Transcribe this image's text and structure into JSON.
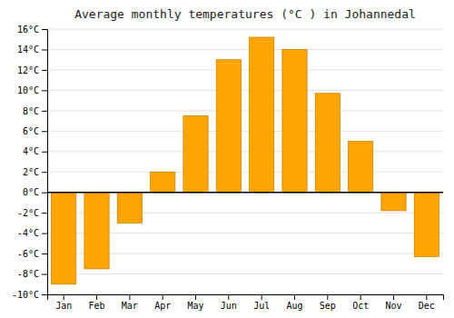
{
  "chart_data": {
    "type": "bar",
    "title": "Average monthly temperatures (°C ) in Johannedal",
    "categories": [
      "Jan",
      "Feb",
      "Mar",
      "Apr",
      "May",
      "Jun",
      "Jul",
      "Aug",
      "Sep",
      "Oct",
      "Nov",
      "Dec"
    ],
    "values": [
      -9.0,
      -7.5,
      -3.0,
      2.0,
      7.5,
      13.0,
      15.2,
      14.0,
      9.7,
      5.0,
      -1.8,
      -6.3
    ],
    "color": "#FFA500",
    "ylim": [
      -10,
      16
    ],
    "yticks": [
      {
        "value": -10,
        "label": "-10°C"
      },
      {
        "value": -8,
        "label": "-8°C"
      },
      {
        "value": -6,
        "label": "-6°C"
      },
      {
        "value": -4,
        "label": "-4°C"
      },
      {
        "value": -2,
        "label": "-2°C"
      },
      {
        "value": 0,
        "label": "0°C"
      },
      {
        "value": 2,
        "label": "2°C"
      },
      {
        "value": 4,
        "label": "4°C"
      },
      {
        "value": 6,
        "label": "6°C"
      },
      {
        "value": 8,
        "label": "8°C"
      },
      {
        "value": 10,
        "label": "10°C"
      },
      {
        "value": 12,
        "label": "12°C"
      },
      {
        "value": 14,
        "label": "14°C"
      },
      {
        "value": 16,
        "label": "16°C"
      }
    ],
    "grid": true
  }
}
